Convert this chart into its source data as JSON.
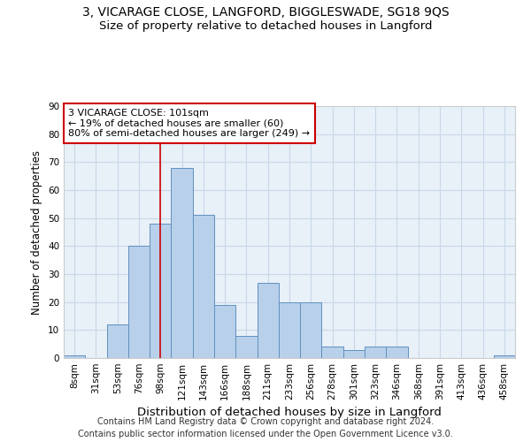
{
  "title1": "3, VICARAGE CLOSE, LANGFORD, BIGGLESWADE, SG18 9QS",
  "title2": "Size of property relative to detached houses in Langford",
  "xlabel": "Distribution of detached houses by size in Langford",
  "ylabel": "Number of detached properties",
  "footer1": "Contains HM Land Registry data © Crown copyright and database right 2024.",
  "footer2": "Contains public sector information licensed under the Open Government Licence v3.0.",
  "bar_labels": [
    "8sqm",
    "31sqm",
    "53sqm",
    "76sqm",
    "98sqm",
    "121sqm",
    "143sqm",
    "166sqm",
    "188sqm",
    "211sqm",
    "233sqm",
    "256sqm",
    "278sqm",
    "301sqm",
    "323sqm",
    "346sqm",
    "368sqm",
    "391sqm",
    "413sqm",
    "436sqm",
    "458sqm"
  ],
  "bar_values": [
    1,
    0,
    12,
    40,
    48,
    68,
    51,
    19,
    8,
    27,
    20,
    20,
    4,
    3,
    4,
    4,
    0,
    0,
    0,
    0,
    1
  ],
  "bar_color": "#b8d0ea",
  "bar_edge_color": "#6090c0",
  "annotation_text": "3 VICARAGE CLOSE: 101sqm\n← 19% of detached houses are smaller (60)\n80% of semi-detached houses are larger (249) →",
  "annotation_box_color": "white",
  "annotation_box_edge_color": "#cc0000",
  "vline_index": 4.5,
  "vline_color": "#cc0000",
  "ylim": [
    0,
    90
  ],
  "yticks": [
    0,
    10,
    20,
    30,
    40,
    50,
    60,
    70,
    80,
    90
  ],
  "grid_color": "#c8d8e8",
  "bg_color": "#e8f0f8",
  "title1_fontsize": 10,
  "title2_fontsize": 9.5,
  "xlabel_fontsize": 9.5,
  "ylabel_fontsize": 8.5,
  "tick_fontsize": 7.5,
  "annotation_fontsize": 8,
  "footer_fontsize": 7
}
